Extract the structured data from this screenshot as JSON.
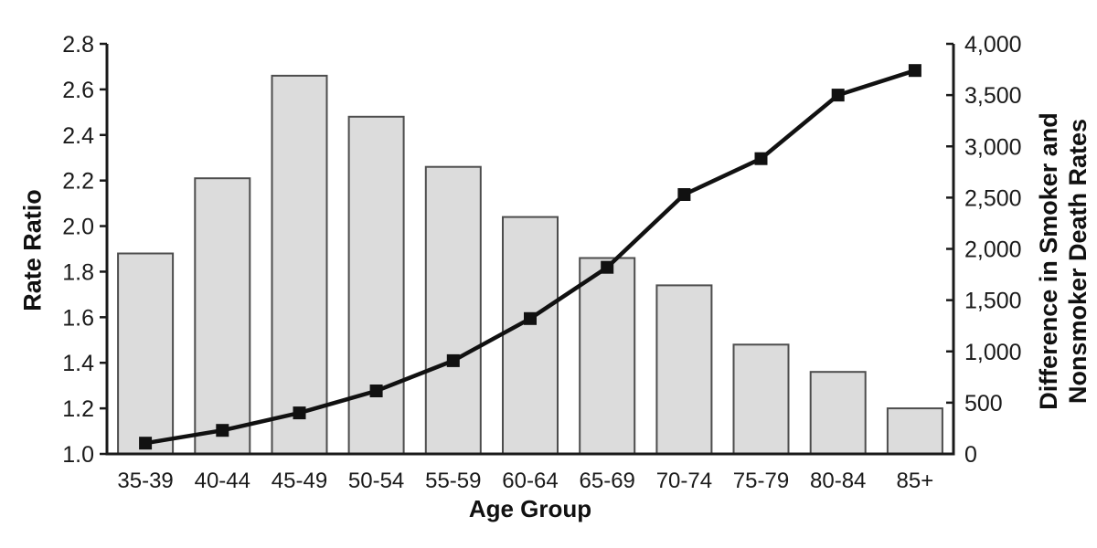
{
  "chart_data": {
    "type": "combo",
    "title": "",
    "xlabel": "Age Group",
    "grid": false,
    "legend": "none",
    "categories": [
      "35-39",
      "40-44",
      "45-49",
      "50-54",
      "55-59",
      "60-64",
      "65-69",
      "70-74",
      "75-79",
      "80-84",
      "85+"
    ],
    "series": [
      {
        "name": "Rate Ratio",
        "type": "bar",
        "axis": "left",
        "values": [
          1.88,
          2.21,
          2.66,
          2.48,
          2.26,
          2.04,
          1.86,
          1.74,
          1.48,
          1.36,
          1.2
        ]
      },
      {
        "name": "Difference in Smoker and Nonsmoker Death Rates",
        "type": "line",
        "marker": "square",
        "axis": "right",
        "values": [
          105,
          230,
          400,
          615,
          910,
          1320,
          1820,
          2530,
          2880,
          3500,
          3740
        ]
      }
    ],
    "left_axis": {
      "label": "Rate Ratio",
      "min": 1.0,
      "max": 2.8,
      "tick_step": 0.2,
      "ticks": [
        1.0,
        1.2,
        1.4,
        1.6,
        1.8,
        2.0,
        2.2,
        2.4,
        2.6,
        2.8
      ],
      "tick_labels": [
        "1.0",
        "1.2",
        "1.4",
        "1.6",
        "1.8",
        "2.0",
        "2.2",
        "2.4",
        "2.6",
        "2.8"
      ]
    },
    "right_axis": {
      "label_line1": "Difference in Smoker and",
      "label_line2": "Nonsmoker Death Rates",
      "min": 0,
      "max": 4000,
      "tick_step": 500,
      "ticks": [
        0,
        500,
        1000,
        1500,
        2000,
        2500,
        3000,
        3500,
        4000
      ],
      "tick_labels": [
        "0",
        "500",
        "1,000",
        "1,500",
        "2,000",
        "2,500",
        "3,000",
        "3,500",
        "4,000"
      ]
    },
    "colors": {
      "bar_fill": "#dcdcdc",
      "bar_border": "#4d4d4d",
      "line": "#111111",
      "axis": "#1a1a1a",
      "text": "#1a1a1a"
    }
  }
}
